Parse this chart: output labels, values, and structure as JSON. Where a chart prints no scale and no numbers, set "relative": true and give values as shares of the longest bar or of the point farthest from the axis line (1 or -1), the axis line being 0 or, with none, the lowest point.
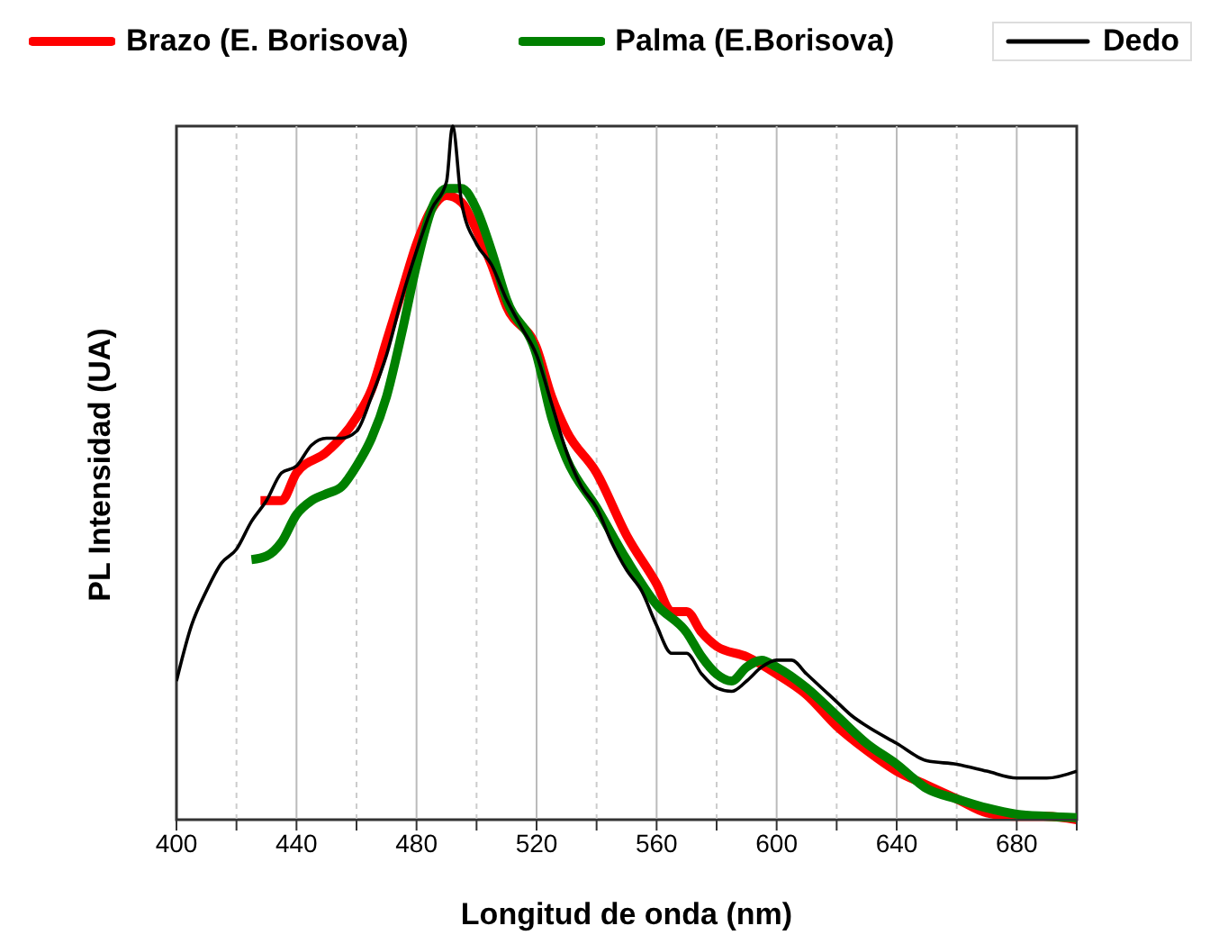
{
  "chart_data": {
    "type": "line",
    "xlabel": "Longitud de onda (nm)",
    "ylabel": "PL Intensidad (UA)",
    "relative": true,
    "xlim": [
      400,
      700
    ],
    "xticks": [
      400,
      {
        "value": 420,
        "label": null
      },
      440,
      {
        "value": 460,
        "label": null
      },
      480,
      {
        "value": 500,
        "label": null
      },
      520,
      {
        "value": 540,
        "label": null
      },
      560,
      {
        "value": 580,
        "label": null
      },
      600,
      {
        "value": 620,
        "label": null
      },
      640,
      {
        "value": 660,
        "label": null
      },
      680,
      {
        "value": 700,
        "label": null
      }
    ],
    "grid": "x",
    "legend": "top",
    "line_style": "solid",
    "marker": "none",
    "series": [
      {
        "name": "Brazo (E. Borisova)",
        "color": "#ff0000",
        "x": [
          428,
          435,
          440,
          450,
          460,
          465,
          470,
          475,
          480,
          485,
          490,
          495,
          500,
          505,
          510,
          520,
          525,
          530,
          540,
          550,
          560,
          565,
          570,
          575,
          580,
          590,
          600,
          610,
          620,
          630,
          640,
          650,
          660,
          670,
          680,
          690,
          700
        ],
        "values": [
          0.46,
          0.46,
          0.5,
          0.53,
          0.58,
          0.62,
          0.69,
          0.76,
          0.83,
          0.88,
          0.9,
          0.89,
          0.85,
          0.8,
          0.74,
          0.68,
          0.61,
          0.56,
          0.5,
          0.41,
          0.34,
          0.3,
          0.3,
          0.27,
          0.25,
          0.235,
          0.21,
          0.18,
          0.135,
          0.1,
          0.07,
          0.05,
          0.03,
          0.01,
          0.005,
          0.005,
          0
        ]
      },
      {
        "name": "Palma (E.Borisova)",
        "color": "#008000",
        "x": [
          425,
          430,
          435,
          440,
          445,
          450,
          455,
          460,
          465,
          470,
          475,
          480,
          485,
          490,
          495,
          500,
          505,
          510,
          520,
          525,
          530,
          540,
          550,
          560,
          570,
          575,
          580,
          585,
          590,
          595,
          600,
          610,
          620,
          630,
          640,
          650,
          660,
          670,
          680,
          690,
          700
        ],
        "values": [
          0.375,
          0.38,
          0.4,
          0.44,
          0.46,
          0.47,
          0.48,
          0.51,
          0.55,
          0.61,
          0.7,
          0.8,
          0.88,
          0.91,
          0.91,
          0.88,
          0.82,
          0.75,
          0.67,
          0.58,
          0.52,
          0.45,
          0.375,
          0.31,
          0.27,
          0.235,
          0.21,
          0.2,
          0.22,
          0.23,
          0.22,
          0.19,
          0.15,
          0.11,
          0.08,
          0.045,
          0.03,
          0.017,
          0.008,
          0.005,
          0.003
        ]
      },
      {
        "name": "Dedo",
        "color": "#000000",
        "x": [
          400,
          405,
          410,
          415,
          420,
          425,
          430,
          435,
          440,
          445,
          450,
          455,
          460,
          465,
          470,
          475,
          480,
          485,
          490,
          492,
          495,
          500,
          505,
          510,
          515,
          520,
          525,
          530,
          535,
          540,
          545,
          550,
          555,
          560,
          565,
          570,
          575,
          580,
          585,
          590,
          595,
          600,
          605,
          610,
          615,
          620,
          625,
          630,
          640,
          650,
          660,
          670,
          680,
          690,
          700
        ],
        "values": [
          0.2,
          0.28,
          0.33,
          0.37,
          0.39,
          0.43,
          0.46,
          0.5,
          0.51,
          0.54,
          0.55,
          0.55,
          0.56,
          0.61,
          0.67,
          0.75,
          0.82,
          0.88,
          0.92,
          1,
          0.89,
          0.83,
          0.8,
          0.75,
          0.71,
          0.67,
          0.6,
          0.53,
          0.48,
          0.45,
          0.4,
          0.36,
          0.33,
          0.28,
          0.24,
          0.24,
          0.21,
          0.19,
          0.185,
          0.2,
          0.22,
          0.23,
          0.23,
          0.21,
          0.19,
          0.17,
          0.15,
          0.135,
          0.11,
          0.085,
          0.08,
          0.07,
          0.06,
          0.06,
          0.07
        ]
      }
    ]
  }
}
